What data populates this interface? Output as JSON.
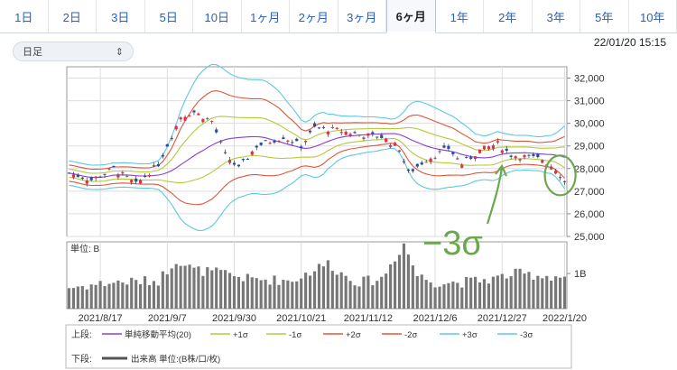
{
  "tabs": [
    {
      "label": "1日",
      "active": false
    },
    {
      "label": "2日",
      "active": false
    },
    {
      "label": "3日",
      "active": false
    },
    {
      "label": "5日",
      "active": false
    },
    {
      "label": "10日",
      "active": false
    },
    {
      "label": "1ヶ月",
      "active": false
    },
    {
      "label": "2ヶ月",
      "active": false
    },
    {
      "label": "3ヶ月",
      "active": false
    },
    {
      "label": "6ヶ月",
      "active": true
    },
    {
      "label": "1年",
      "active": false
    },
    {
      "label": "2年",
      "active": false
    },
    {
      "label": "3年",
      "active": false
    },
    {
      "label": "5年",
      "active": false
    },
    {
      "label": "10年",
      "active": false
    }
  ],
  "period_select": {
    "value": "日足"
  },
  "timestamp": "22/01/20 15:15",
  "annotation": {
    "text": "−3σ",
    "color": "#6aa84f"
  },
  "legend": {
    "upper_label": "上段:",
    "lower_label": "下段:",
    "items": [
      {
        "label": "単純移動平均(20)",
        "color": "#8a3fd1"
      },
      {
        "label": "+1σ",
        "color": "#b5c93a"
      },
      {
        "label": "-1σ",
        "color": "#b5c93a"
      },
      {
        "label": "+2σ",
        "color": "#e0563a"
      },
      {
        "label": "-2σ",
        "color": "#e0563a"
      },
      {
        "label": "+3σ",
        "color": "#5cc9e0"
      },
      {
        "label": "-3σ",
        "color": "#5cc9e0"
      }
    ],
    "volume_label": "出来高 単位:(B株/口/枚)",
    "volume_color": "#555555"
  },
  "chart_data": [
    {
      "type": "candlestick",
      "y_ticks": [
        "32,000",
        "31,000",
        "30,000",
        "29,000",
        "28,000",
        "27,000",
        "26,000",
        "25,000"
      ],
      "y_tick_values": [
        32000,
        31000,
        30000,
        29000,
        28000,
        27000,
        26000,
        25000
      ],
      "ylim": [
        25000,
        32500
      ],
      "x_tick_labels": [
        "2021/8/17",
        "2021/9/7",
        "2021/9/30",
        "2021/10/21",
        "2021/11/12",
        "2021/12/6",
        "2021/12/27",
        "2022/1/20"
      ],
      "x_tick_index": [
        7,
        22,
        37,
        52,
        67,
        82,
        97,
        111
      ],
      "colors": {
        "up": "#d8334a",
        "down": "#1f4fa8",
        "ma": "#8a3fd1",
        "s1": "#b5c93a",
        "s2": "#e0563a",
        "s3": "#5cc9e0"
      },
      "close_anchors": [
        [
          0,
          27800
        ],
        [
          5,
          27500
        ],
        [
          10,
          28000
        ],
        [
          15,
          27300
        ],
        [
          20,
          28200
        ],
        [
          25,
          30300
        ],
        [
          28,
          30500
        ],
        [
          32,
          30100
        ],
        [
          35,
          28600
        ],
        [
          38,
          28000
        ],
        [
          42,
          29000
        ],
        [
          48,
          29400
        ],
        [
          52,
          29000
        ],
        [
          55,
          29800
        ],
        [
          60,
          29700
        ],
        [
          65,
          29500
        ],
        [
          70,
          29400
        ],
        [
          74,
          28900
        ],
        [
          76,
          27800
        ],
        [
          80,
          28400
        ],
        [
          85,
          28900
        ],
        [
          88,
          28200
        ],
        [
          92,
          28800
        ],
        [
          96,
          29100
        ],
        [
          99,
          28600
        ],
        [
          103,
          28500
        ],
        [
          106,
          28400
        ],
        [
          109,
          28000
        ],
        [
          111,
          27400
        ]
      ]
    },
    {
      "type": "bar",
      "title": "単位: B",
      "y_tick_label": "1B",
      "y_tick_value": 1.0,
      "ylim": [
        0,
        1.9
      ],
      "volume_anchors": [
        [
          0,
          0.6
        ],
        [
          10,
          0.75
        ],
        [
          20,
          0.8
        ],
        [
          24,
          1.4
        ],
        [
          28,
          1.1
        ],
        [
          35,
          1.0
        ],
        [
          40,
          0.85
        ],
        [
          50,
          0.8
        ],
        [
          58,
          1.3
        ],
        [
          61,
          1.0
        ],
        [
          65,
          0.75
        ],
        [
          70,
          0.85
        ],
        [
          75,
          1.85
        ],
        [
          78,
          0.95
        ],
        [
          82,
          0.75
        ],
        [
          88,
          0.75
        ],
        [
          95,
          0.85
        ],
        [
          100,
          1.0
        ],
        [
          105,
          0.95
        ],
        [
          111,
          0.9
        ]
      ]
    }
  ]
}
